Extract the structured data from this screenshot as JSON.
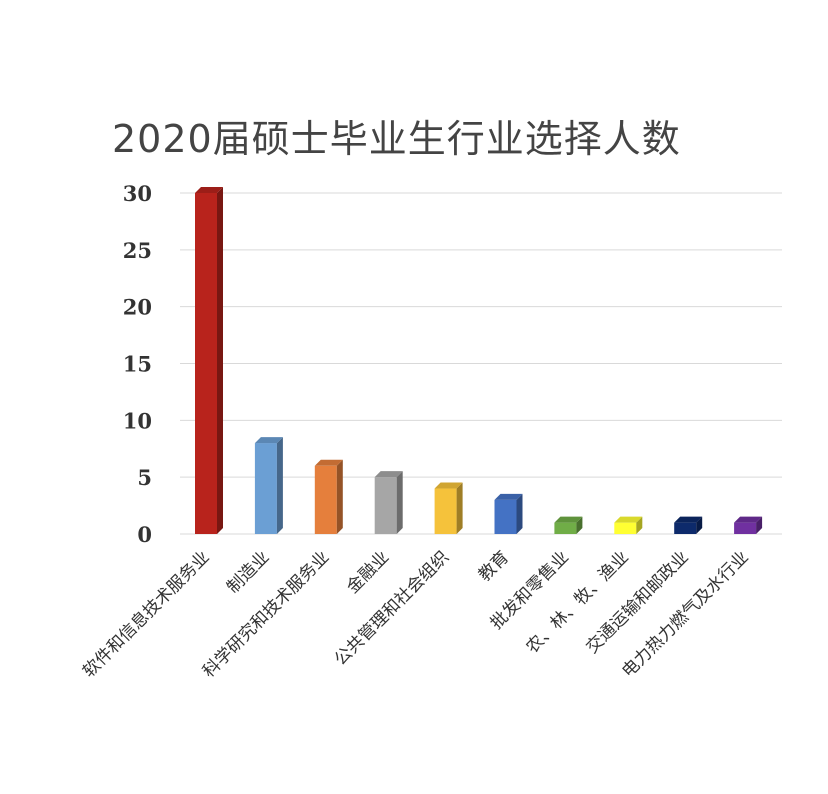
{
  "chart_data": {
    "type": "bar",
    "title": "2020届硕士毕业生行业选择人数",
    "xlabel": "",
    "ylabel": "",
    "ylim": [
      0,
      30
    ],
    "yticks": [
      0,
      5,
      10,
      15,
      20,
      25,
      30
    ],
    "grid": true,
    "categories": [
      "软件和信息技术服务业",
      "制造业",
      "科学研究和技术服务业",
      "金融业",
      "公共管理和社会组织",
      "教育",
      "批发和零售业",
      "农、林、牧、渔业",
      "交通运输和邮政业",
      "电力热力燃气及水行业"
    ],
    "values": [
      30,
      8,
      6,
      5,
      4,
      3,
      1,
      1,
      1,
      1
    ],
    "colors": [
      "#b8231c",
      "#6b9fd4",
      "#e57f3c",
      "#a6a6a6",
      "#f5c23b",
      "#4472c4",
      "#70ad47",
      "#ffff33",
      "#0d2a6b",
      "#7030a0"
    ]
  }
}
